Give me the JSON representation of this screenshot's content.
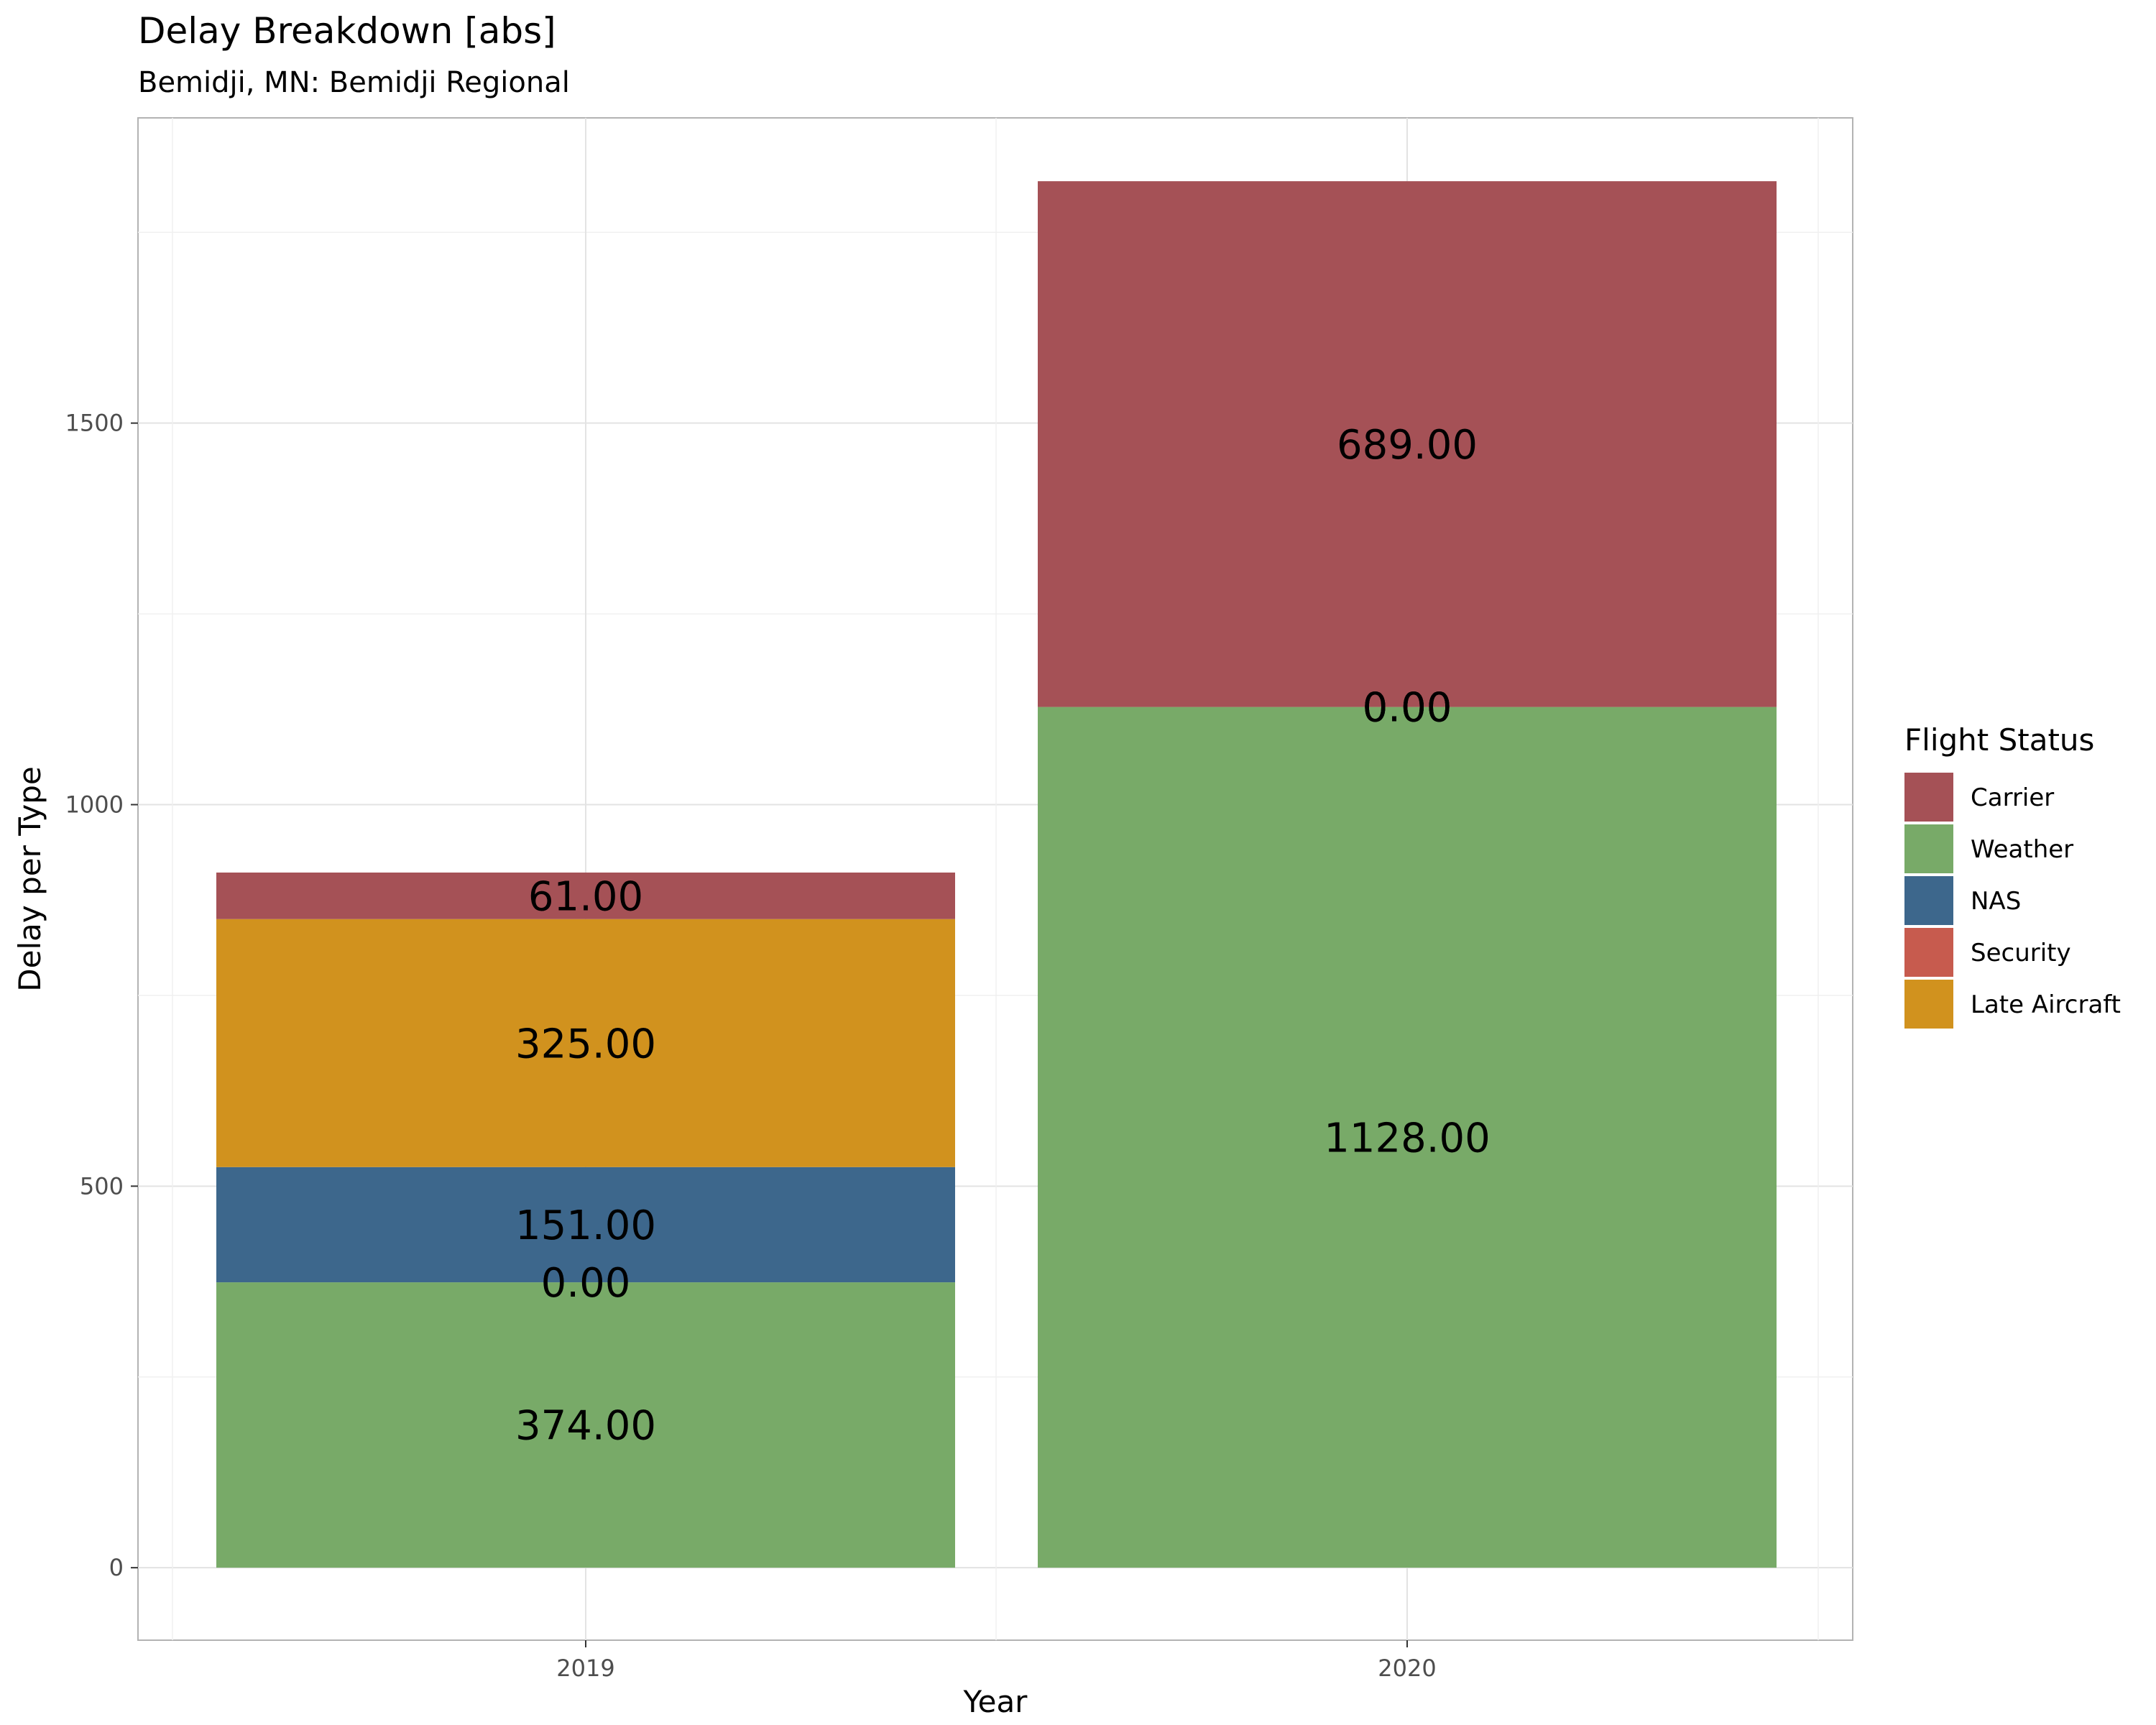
{
  "chart_data": {
    "type": "bar",
    "stacked": true,
    "title": "Delay Breakdown [abs]",
    "subtitle": "Bemidji, MN: Bemidji Regional",
    "xlabel": "Year",
    "ylabel": "Delay per Type",
    "categories": [
      "2019",
      "2020"
    ],
    "ylim": [
      -95,
      1900
    ],
    "yticks": [
      0,
      500,
      1000,
      1500
    ],
    "grid": true,
    "legend": {
      "title": "Flight Status",
      "placement": "right"
    },
    "series": [
      {
        "name": "Weather",
        "color": "#78aa68",
        "values": [
          374,
          1128
        ],
        "labels": [
          "374.00",
          "1128.00"
        ]
      },
      {
        "name": "Security",
        "color": "#c75b4e",
        "values": [
          0,
          0
        ],
        "labels": [
          "0.00",
          "0.00"
        ]
      },
      {
        "name": "NAS",
        "color": "#3d678c",
        "values": [
          151,
          0
        ],
        "labels": [
          "151.00",
          "0.00"
        ]
      },
      {
        "name": "Late Aircraft",
        "color": "#d1921e",
        "values": [
          325,
          0
        ],
        "labels": [
          "325.00",
          "0.00"
        ]
      },
      {
        "name": "Carrier",
        "color": "#a55156",
        "values": [
          61,
          689
        ],
        "labels": [
          "61.00",
          "689.00"
        ]
      }
    ],
    "legend_order": [
      "Carrier",
      "Weather",
      "NAS",
      "Security",
      "Late Aircraft"
    ]
  }
}
